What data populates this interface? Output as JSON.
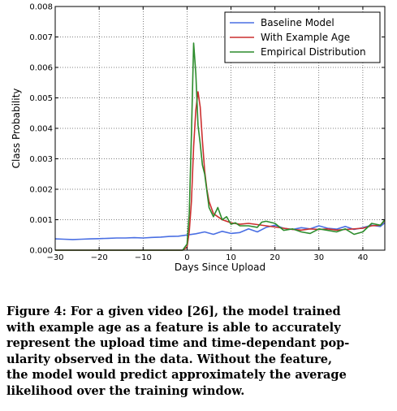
{
  "chart_data": {
    "type": "line",
    "title": "",
    "xlabel": "Days Since Upload",
    "ylabel": "Class Probability",
    "xlim": [
      -30,
      45
    ],
    "ylim": [
      0,
      0.008
    ],
    "xticks": [
      -30,
      -20,
      -10,
      0,
      10,
      20,
      30,
      40
    ],
    "xtick_labels": [
      "−30",
      "−20",
      "−10",
      "0",
      "10",
      "20",
      "30",
      "40"
    ],
    "yticks": [
      0,
      0.001,
      0.002,
      0.003,
      0.004,
      0.005,
      0.006,
      0.007,
      0.008
    ],
    "ytick_labels": [
      "0.000",
      "0.001",
      "0.002",
      "0.003",
      "0.004",
      "0.005",
      "0.006",
      "0.007",
      "0.008"
    ],
    "grid": true,
    "legend_position": "top-right",
    "series": [
      {
        "name": "Baseline Model",
        "color": "#4a6fe3",
        "x": [
          -30,
          -28,
          -26,
          -24,
          -22,
          -20,
          -18,
          -16,
          -14,
          -12,
          -10,
          -8,
          -6,
          -4,
          -2,
          0,
          2,
          4,
          6,
          8,
          10,
          12,
          14,
          16,
          18,
          20,
          22,
          24,
          26,
          28,
          30,
          32,
          34,
          36,
          38,
          40,
          42,
          44,
          45
        ],
        "y": [
          0.00037,
          0.00036,
          0.00035,
          0.00036,
          0.00037,
          0.00038,
          0.00039,
          0.0004,
          0.0004,
          0.00041,
          0.0004,
          0.00042,
          0.00043,
          0.00045,
          0.00046,
          0.0005,
          0.00054,
          0.0006,
          0.00052,
          0.00062,
          0.00055,
          0.00058,
          0.0007,
          0.0006,
          0.00075,
          0.00082,
          0.00072,
          0.00068,
          0.00074,
          0.0007,
          0.0008,
          0.00072,
          0.00069,
          0.00078,
          0.00068,
          0.00074,
          0.00082,
          0.00078,
          0.0009
        ]
      },
      {
        "name": "With Example Age",
        "color": "#cc2f2f",
        "x": [
          -30,
          -10,
          -5,
          -1,
          0,
          0.5,
          1,
          1.5,
          2,
          2.5,
          3,
          3.5,
          4,
          4.5,
          5,
          6,
          7,
          8,
          9,
          10,
          12,
          14,
          16,
          18,
          20,
          22,
          24,
          26,
          28,
          30,
          32,
          34,
          36,
          38,
          40,
          42,
          44,
          45
        ],
        "y": [
          0,
          0,
          0,
          0,
          0.0001,
          0.0006,
          0.0016,
          0.0034,
          0.0046,
          0.0052,
          0.0047,
          0.0036,
          0.0026,
          0.002,
          0.0016,
          0.0012,
          0.0011,
          0.001,
          0.00095,
          0.0009,
          0.00085,
          0.00088,
          0.00084,
          0.0008,
          0.00076,
          0.00072,
          0.00068,
          0.00066,
          0.0007,
          0.00068,
          0.0007,
          0.00066,
          0.00068,
          0.0007,
          0.00072,
          0.0008,
          0.00082,
          0.00098
        ]
      },
      {
        "name": "Empirical Distribution",
        "color": "#2c8c2c",
        "x": [
          -30,
          -10,
          -5,
          -1,
          0,
          0.5,
          1,
          1.5,
          2,
          2.5,
          3,
          3.5,
          4,
          5,
          6,
          7,
          8,
          9,
          10,
          11,
          12,
          14,
          16,
          17,
          18,
          20,
          22,
          24,
          26,
          28,
          30,
          32,
          34,
          36,
          38,
          40,
          42,
          44,
          45
        ],
        "y": [
          0,
          0,
          0,
          0,
          0.0002,
          0.0012,
          0.0038,
          0.0068,
          0.0058,
          0.0041,
          0.0035,
          0.0028,
          0.0025,
          0.0014,
          0.0011,
          0.0014,
          0.001,
          0.0011,
          0.00085,
          0.0009,
          0.0008,
          0.0008,
          0.00075,
          0.00092,
          0.00095,
          0.00088,
          0.00065,
          0.0007,
          0.0006,
          0.00055,
          0.0007,
          0.00065,
          0.0006,
          0.0007,
          0.00052,
          0.0006,
          0.00088,
          0.00082,
          0.001
        ]
      }
    ]
  },
  "caption": {
    "lines": [
      "Figure 4: For a given video [26], the model trained",
      "with example age as a feature is able to accurately",
      "represent the upload time and time-dependant pop-",
      "ularity observed in the data. Without the feature,",
      "the model would predict approximately the average",
      "likelihood over the training window."
    ]
  }
}
